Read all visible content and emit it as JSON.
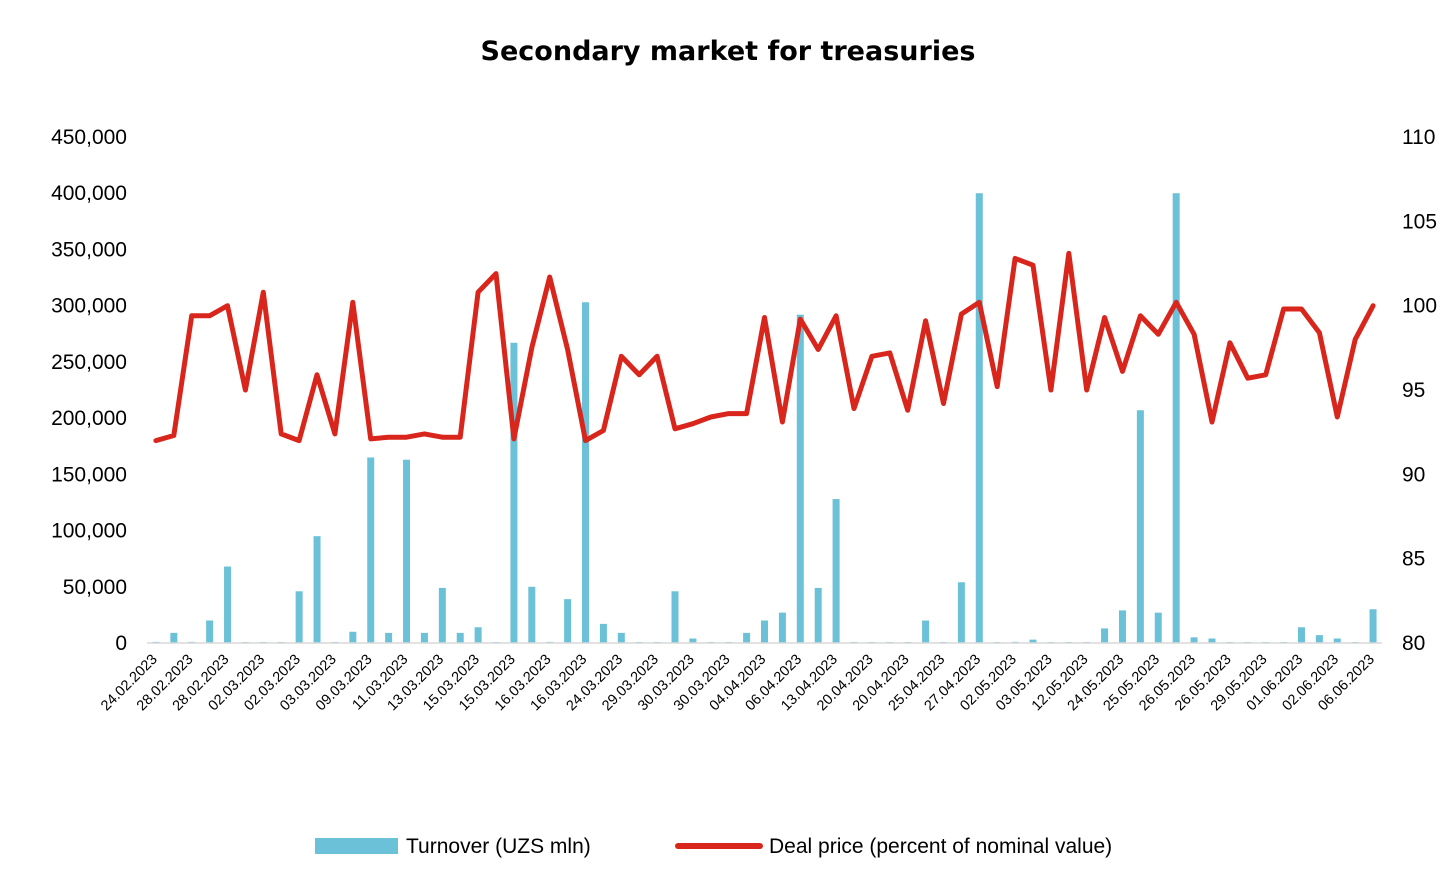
{
  "chart_data": {
    "type": "bar+line",
    "title": "Secondary market for treasuries",
    "xlabel": "",
    "ylabel_left": "",
    "ylabel_right": "",
    "ylim_left": [
      0,
      450000
    ],
    "ylim_right": [
      80,
      110
    ],
    "yticks_left": [
      "0",
      "50,000",
      "100,000",
      "150,000",
      "200,000",
      "250,000",
      "300,000",
      "350,000",
      "400,000",
      "450,000"
    ],
    "yticks_right": [
      "80",
      "85",
      "90",
      "95",
      "100",
      "105",
      "110"
    ],
    "grid": false,
    "legend_position": "bottom",
    "categories": [
      "24.02.2023",
      "",
      "28.02.2023",
      "",
      "28.02.2023",
      "",
      "02.03.2023",
      "",
      "02.03.2023",
      "",
      "03.03.2023",
      "",
      "09.03.2023",
      "",
      "11.03.2023",
      "",
      "13.03.2023",
      "",
      "15.03.2023",
      "",
      "15.03.2023",
      "",
      "16.03.2023",
      "",
      "16.03.2023",
      "",
      "24.03.2023",
      "",
      "29.03.2023",
      "",
      "30.03.2023",
      "",
      "30.03.2023",
      "",
      "04.04.2023",
      "",
      "06.04.2023",
      "",
      "13.04.2023",
      "",
      "20.04.2023",
      "",
      "20.04.2023",
      "",
      "25.04.2023",
      "",
      "27.04.2023",
      "",
      "02.05.2023",
      "",
      "03.05.2023",
      "",
      "12.05.2023",
      "",
      "24.05.2023",
      "",
      "25.05.2023",
      "",
      "26.05.2023",
      "",
      "26.05.2023",
      "",
      "29.05.2023",
      "",
      "01.06.2023",
      "",
      "02.06.2023",
      "",
      "06.06.2023"
    ],
    "series": [
      {
        "name": "Turnover (UZS mln)",
        "type": "bar",
        "axis": "left",
        "color": "#6BC1D7",
        "values": [
          1000,
          9000,
          1000,
          20000,
          68000,
          500,
          500,
          500,
          46000,
          95000,
          500,
          10000,
          165000,
          9000,
          163000,
          9000,
          49000,
          9000,
          14000,
          500,
          267000,
          50000,
          1000,
          39000,
          303000,
          17000,
          9000,
          500,
          500,
          46000,
          4000,
          500,
          500,
          9000,
          20000,
          27000,
          292000,
          49000,
          128000,
          500,
          500,
          500,
          500,
          20000,
          500,
          54000,
          400000,
          500,
          1000,
          3000,
          500,
          500,
          500,
          13000,
          29000,
          207000,
          27000,
          400000,
          5000,
          4000,
          500,
          500,
          500,
          500,
          14000,
          7000,
          4000,
          500,
          30000
        ]
      },
      {
        "name": "Deal price (percent of nominal value)",
        "type": "line",
        "axis": "right",
        "color": "#D9261C",
        "values": [
          92.0,
          92.3,
          99.4,
          99.4,
          100.0,
          95.0,
          100.8,
          92.4,
          92.0,
          95.9,
          92.4,
          100.2,
          92.1,
          92.2,
          92.2,
          92.4,
          92.2,
          92.2,
          100.8,
          101.9,
          92.1,
          97.5,
          101.7,
          97.4,
          92.0,
          92.6,
          97.0,
          95.9,
          97.0,
          92.7,
          93.0,
          93.4,
          93.6,
          93.6,
          99.3,
          93.1,
          99.2,
          97.4,
          99.4,
          93.9,
          97.0,
          97.2,
          93.8,
          99.1,
          94.2,
          99.5,
          100.2,
          95.2,
          102.8,
          102.4,
          95.0,
          103.1,
          95.0,
          99.3,
          96.1,
          99.4,
          98.3,
          100.2,
          98.3,
          93.1,
          97.8,
          95.7,
          95.9,
          99.8,
          99.8,
          98.4,
          93.4,
          98.0,
          100.0
        ]
      }
    ]
  }
}
